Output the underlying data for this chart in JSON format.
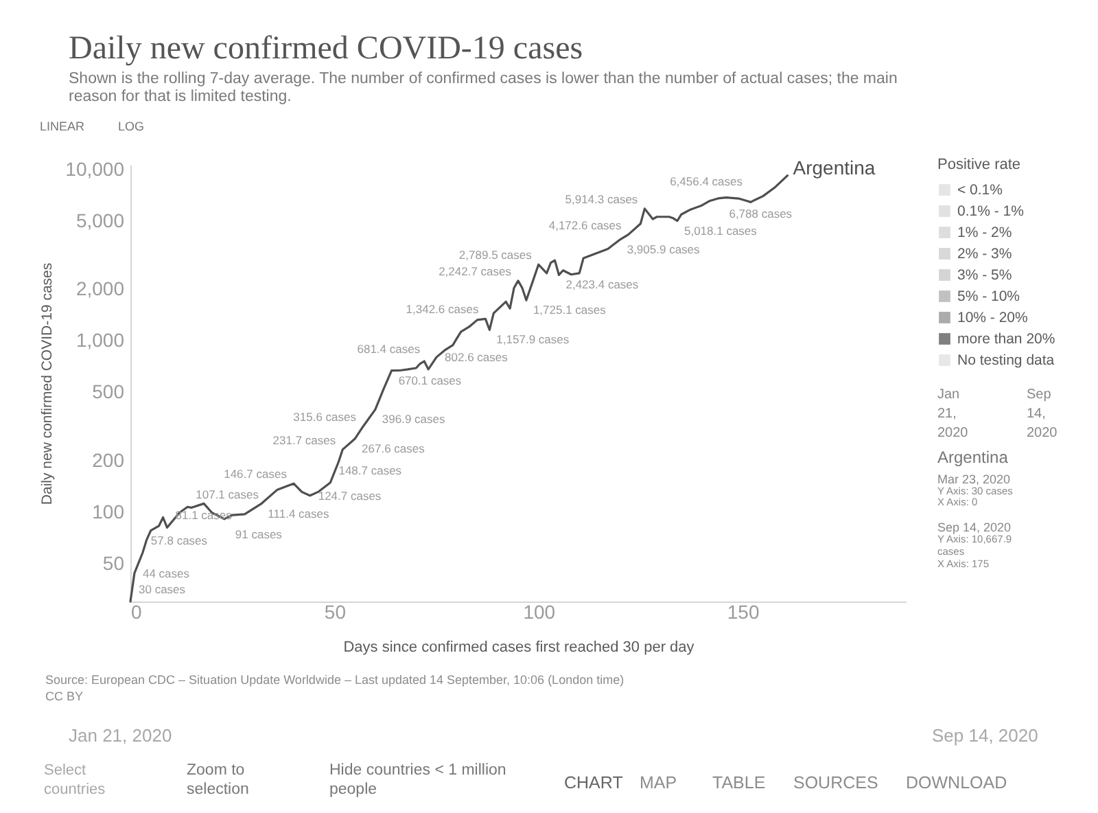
{
  "chart_data": {
    "type": "line",
    "title": "Daily new confirmed COVID-19 cases",
    "subtitle": "Shown is the rolling 7-day average. The number of confirmed cases is lower than the number of actual cases; the main reason for that is limited testing.",
    "xlabel": "Days since confirmed cases first reached 30 per day",
    "ylabel": "Daily new confirmed COVID-19 cases",
    "legend_title": "Positive rate",
    "legend": "right",
    "log": true,
    "xlim": [
      0,
      190
    ],
    "xticks": [
      0,
      50,
      100,
      150
    ],
    "ylim": [
      30,
      10667.9
    ],
    "yticks": [
      50,
      100,
      200,
      500,
      {
        "value": 1000,
        "label": "1,000"
      },
      {
        "value": 2000,
        "label": "2,000"
      },
      {
        "value": 5000,
        "label": "5,000"
      },
      {
        "value": 10000,
        "label": "10,000"
      }
    ],
    "series": [
      {
        "name": "Argentina",
        "color": "#4f4f4f",
        "x": [
          0,
          1,
          3,
          4,
          5,
          7,
          8,
          9,
          12,
          14,
          15,
          18,
          20,
          23,
          25,
          28,
          32,
          36,
          40,
          42,
          44,
          46,
          49,
          51,
          52,
          55,
          57,
          60,
          62,
          64,
          66,
          68,
          70,
          71,
          72,
          73,
          75,
          77,
          79,
          80,
          81,
          83,
          85,
          87,
          88,
          89,
          92,
          93,
          94,
          95,
          96,
          97,
          99,
          100,
          102,
          103,
          104,
          105,
          106,
          108,
          110,
          111,
          114,
          117,
          120,
          122,
          125,
          126,
          128,
          129,
          132,
          133,
          134,
          135,
          137,
          140,
          142,
          144,
          146,
          149,
          151,
          152,
          153,
          155,
          158,
          161
        ],
        "values": [
          30,
          44,
          57.8,
          69,
          78,
          83,
          93,
          81.1,
          99,
          107.1,
          106,
          112,
          99,
          91,
          96,
          97,
          111.4,
          135,
          146.7,
          131,
          124.7,
          131,
          148.7,
          196,
          231.7,
          267.6,
          315.6,
          396.9,
          520,
          670.1,
          671,
          681,
          693,
          736,
          760,
          681.4,
          802.6,
          880,
          944,
          1035,
          1130,
          1207,
          1325,
          1342.6,
          1157.9,
          1450,
          1693,
          1545,
          2039,
          2242.7,
          2039,
          1725.1,
          2376,
          2789.5,
          2483,
          2860,
          2950,
          2423.4,
          2578,
          2440,
          2483,
          3039,
          3236,
          3442,
          3905.9,
          4172.6,
          4831,
          5914.3,
          5140,
          5300,
          5300,
          5200,
          5018.1,
          5475,
          5808,
          6177,
          6572,
          6788,
          6866,
          6780,
          6572,
          6456.4,
          6650,
          6998,
          7906,
          9230
        ],
        "value_labels": [
          "30 cases",
          "44 cases",
          "57.8 cases",
          null,
          null,
          null,
          null,
          "81.1 cases",
          null,
          "107.1 cases",
          null,
          null,
          null,
          "91 cases",
          null,
          null,
          "111.4 cases",
          null,
          "146.7 cases",
          null,
          "124.7 cases",
          null,
          "148.7 cases",
          null,
          "231.7 cases",
          "267.6 cases",
          "315.6 cases",
          "396.9 cases",
          null,
          "670.1 cases",
          null,
          null,
          null,
          null,
          null,
          "681.4 cases",
          "802.6 cases",
          null,
          null,
          null,
          null,
          null,
          null,
          "1,342.6 cases",
          "1,157.9 cases",
          null,
          null,
          null,
          null,
          "2,242.7 cases",
          null,
          "1,725.1 cases",
          null,
          "2,789.5 cases",
          null,
          null,
          null,
          "2,423.4 cases",
          null,
          null,
          null,
          null,
          null,
          null,
          "3,905.9 cases",
          "4,172.6 cases",
          null,
          "5,914.3 cases",
          null,
          null,
          null,
          null,
          "5,018.1 cases",
          null,
          null,
          null,
          null,
          "6,788 cases",
          null,
          null,
          null,
          "6,456.4 cases",
          null,
          null,
          null,
          null
        ]
      },
      {
        "name": "< 0.1%",
        "color": "#dadada"
      },
      {
        "name": "0.1% - 1%",
        "color": "#d4d4d4"
      },
      {
        "name": "1% - 2%",
        "color": "#cecece"
      },
      {
        "name": "2% - 3%",
        "color": "#c8c8c8"
      },
      {
        "name": "3% - 5%",
        "color": "#c2c2c2"
      },
      {
        "name": "5% - 10%",
        "color": "#a6a6a6"
      },
      {
        "name": "10% - 20%",
        "color": "#878787"
      },
      {
        "name": "more than 20%",
        "color": "#4a4a4a"
      },
      {
        "name": "No testing data",
        "color": "#dddddd"
      }
    ],
    "annotations": [
      "Source: European CDC – Situation Update Worldwide – Last updated 14 September, 10:06 (London time)",
      "CC BY",
      "LINEAR",
      "LOG",
      "Jan 21, 2020",
      "Sep 14, 2020",
      "Select countries",
      "Zoom to selection",
      "Hide countries < 1 million people",
      "CHART",
      "MAP",
      "TABLE",
      "SOURCES",
      "DOWNLOAD",
      "Jan 21, 2020",
      "Sep 14, 2020",
      "Argentina",
      "Mar 23, 2020",
      "Y Axis: 30 cases",
      "X Axis: 0",
      "Sep 14, 2020",
      "Y Axis: 10,667.9 cases",
      "X Axis: 175"
    ]
  }
}
